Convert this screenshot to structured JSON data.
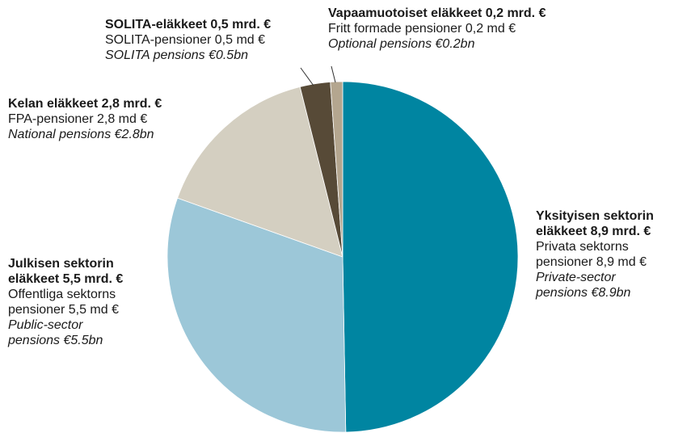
{
  "chart_data": {
    "type": "pie",
    "values": [
      8.9,
      5.5,
      2.8,
      0.5,
      0.2
    ],
    "colors": [
      "#0085a1",
      "#9cc7d8",
      "#d4cfc1",
      "#574a37",
      "#b4a68f"
    ],
    "labels": [
      {
        "fi": [
          "Yksityisen sektorin",
          "eläkkeet 8,9 mrd. €"
        ],
        "sv": [
          "Privata sektorns",
          "pensioner 8,9 md €"
        ],
        "en": [
          "Private-sector",
          "pensions €8.9bn"
        ]
      },
      {
        "fi": [
          "Julkisen sektorin",
          "eläkkeet 5,5 mrd. €"
        ],
        "sv": [
          "Offentliga sektorns",
          "pensioner 5,5 md €"
        ],
        "en": [
          "Public-sector",
          "pensions €5.5bn"
        ]
      },
      {
        "fi": [
          "Kelan eläkkeet 2,8 mrd. €"
        ],
        "sv": [
          "FPA-pensioner 2,8 md €"
        ],
        "en": [
          "National pensions €2.8bn"
        ]
      },
      {
        "fi": [
          "SOLITA-eläkkeet 0,5 mrd. €"
        ],
        "sv": [
          "SOLITA-pensioner 0,5 md €"
        ],
        "en": [
          "SOLITA pensions €0.5bn"
        ]
      },
      {
        "fi": [
          "Vapaamuotoiset eläkkeet 0,2 mrd. €"
        ],
        "sv": [
          "Fritt formade pensioner 0,2 md €"
        ],
        "en": [
          "Optional pensions €0.2bn"
        ]
      }
    ]
  }
}
